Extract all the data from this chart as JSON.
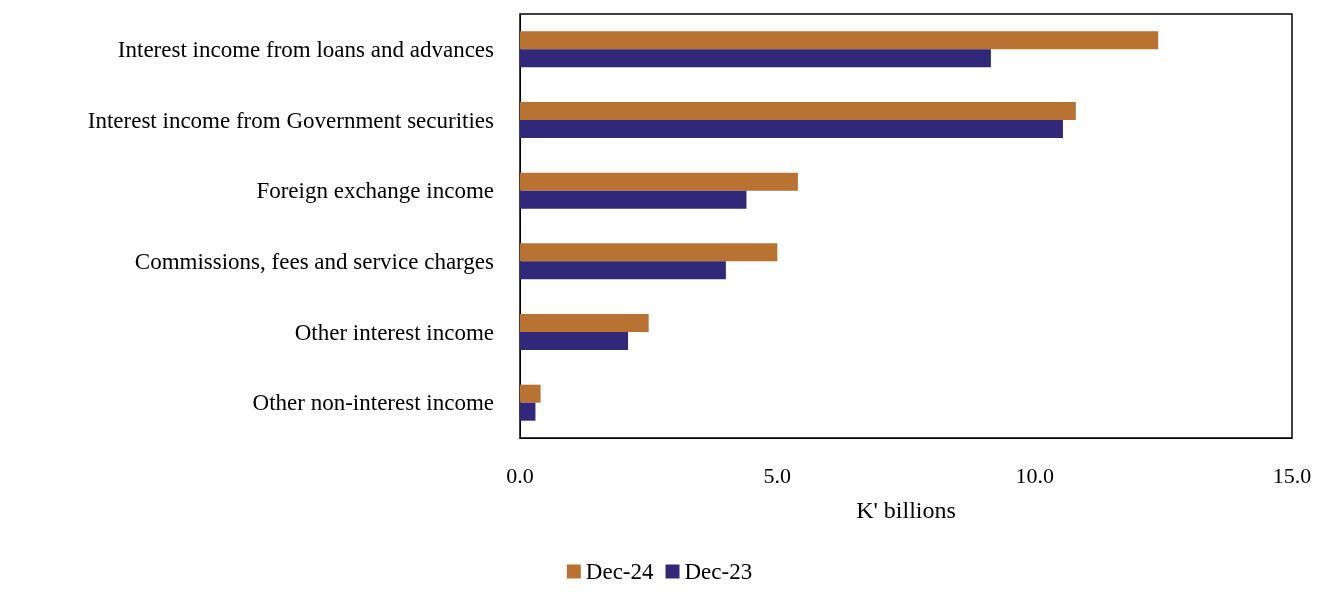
{
  "chart_data": {
    "type": "bar",
    "orientation": "horizontal",
    "xlabel": "K' billions",
    "categories": [
      "Interest income from loans and advances",
      "Interest income from Government securities",
      "Foreign exchange income",
      "Commissions, fees and service charges",
      "Other interest income",
      "Other non-interest income"
    ],
    "series": [
      {
        "name": "Dec-24",
        "color": "#b87333",
        "values": [
          12.4,
          10.8,
          5.4,
          5.0,
          2.5,
          0.4
        ]
      },
      {
        "name": "Dec-23",
        "color": "#31287a",
        "values": [
          9.15,
          10.55,
          4.4,
          4.0,
          2.1,
          0.3
        ]
      }
    ],
    "xlim": [
      0,
      15
    ],
    "xticks": [
      {
        "value": 0,
        "label": "0.0"
      },
      {
        "value": 5,
        "label": "5.0"
      },
      {
        "value": 10,
        "label": "10.0"
      },
      {
        "value": 15,
        "label": "15.0"
      }
    ],
    "grid": false,
    "legend": "bottom"
  }
}
